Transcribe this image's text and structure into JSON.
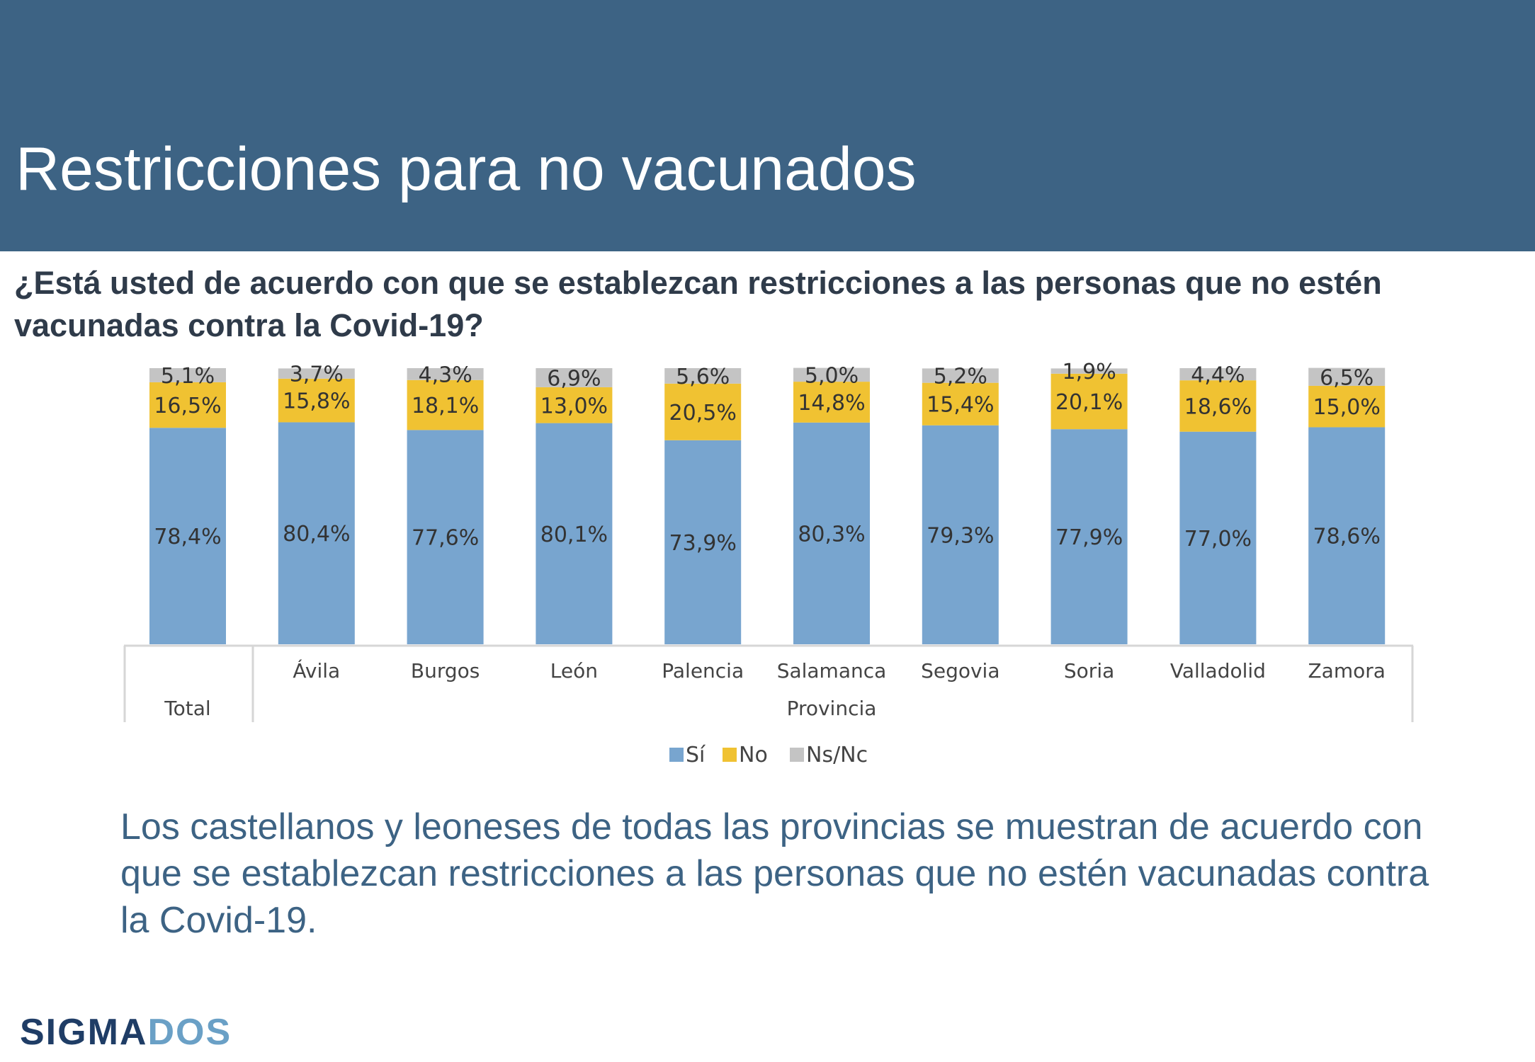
{
  "header": {
    "title": "Restricciones para no vacunados",
    "question": " ¿Está usted de acuerdo con que se establezcan restricciones a las personas que no estén vacunadas contra la Covid-19?"
  },
  "summary": "Los castellanos y leoneses de todas las provincias se muestran de acuerdo con que se establezcan restricciones a las personas que no estén vacunadas contra la Covid-19.",
  "logo": {
    "part1": "SIGMA",
    "part2": "DOS",
    "color1": "#1f3d66",
    "color2": "#6aa0c6"
  },
  "chart_data": {
    "type": "bar",
    "stacked": true,
    "categories": [
      "Total",
      "Ávila",
      "Burgos",
      "León",
      "Palencia",
      "Salamanca",
      "Segovia",
      "Soria",
      "Valladolid",
      "Zamora"
    ],
    "group_labels": [
      "Total",
      "Provincia"
    ],
    "series": [
      {
        "name": "Sí",
        "color": "#78a5cf",
        "values": [
          78.4,
          80.4,
          77.6,
          80.1,
          73.9,
          80.3,
          79.3,
          77.9,
          77.0,
          78.6
        ],
        "labels": [
          "78,4%",
          "80,4%",
          "77,6%",
          "80,1%",
          "73,9%",
          "80,3%",
          "79,3%",
          "77,9%",
          "77,0%",
          "78,6%"
        ]
      },
      {
        "name": "No",
        "color": "#f0c232",
        "values": [
          16.5,
          15.8,
          18.1,
          13.0,
          20.5,
          14.8,
          15.4,
          20.1,
          18.6,
          15.0
        ],
        "labels": [
          "16,5%",
          "15,8%",
          "18,1%",
          "13,0%",
          "20,5%",
          "14,8%",
          "15,4%",
          "20,1%",
          "18,6%",
          "15,0%"
        ]
      },
      {
        "name": "Ns/Nc",
        "color": "#c4c4c4",
        "values": [
          5.1,
          3.7,
          4.3,
          6.9,
          5.6,
          5.0,
          5.2,
          1.9,
          4.4,
          6.5
        ],
        "labels": [
          "5,1%",
          "3,7%",
          "4,3%",
          "6,9%",
          "5,6%",
          "5,0%",
          "5,2%",
          "1,9%",
          "4,4%",
          "6,5%"
        ]
      }
    ],
    "ylim": [
      0,
      100
    ],
    "legend_position": "bottom"
  }
}
